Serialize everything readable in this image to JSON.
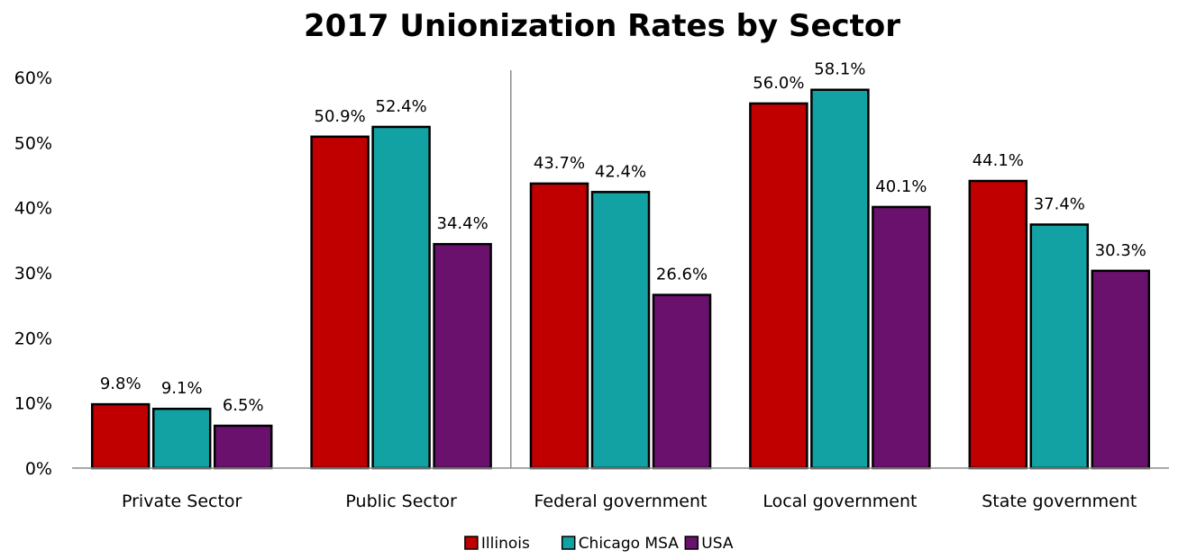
{
  "chart_data": {
    "type": "bar",
    "title": "2017 Unionization Rates by Sector",
    "xlabel": "",
    "ylabel": "",
    "ylim": [
      0,
      60
    ],
    "yticks": [
      "0%",
      "10%",
      "20%",
      "30%",
      "40%",
      "50%",
      "60%"
    ],
    "grid": false,
    "legend_position": "bottom",
    "divider_after_category": 1,
    "categories": [
      "Private Sector",
      "Public Sector",
      "Federal government",
      "Local government",
      "State government"
    ],
    "series": [
      {
        "name": "Illinois",
        "color": "#C00000",
        "values": [
          9.8,
          50.9,
          43.7,
          56.0,
          44.1
        ],
        "labels": [
          "9.8%",
          "50.9%",
          "43.7%",
          "56.0%",
          "44.1%"
        ]
      },
      {
        "name": "Chicago MSA",
        "color": "#12A2A3",
        "values": [
          9.1,
          52.4,
          42.4,
          58.1,
          37.4
        ],
        "labels": [
          "9.1%",
          "52.4%",
          "42.4%",
          "58.1%",
          "37.4%"
        ]
      },
      {
        "name": "USA",
        "color": "#6A116E",
        "values": [
          6.5,
          34.4,
          26.6,
          40.1,
          30.3
        ],
        "labels": [
          "6.5%",
          "34.4%",
          "26.6%",
          "40.1%",
          "30.3%"
        ]
      }
    ]
  }
}
